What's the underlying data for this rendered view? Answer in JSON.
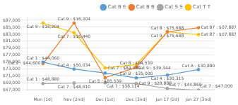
{
  "chart_data": {
    "type": "line",
    "categories": [
      "Mon [1d]",
      "Nov [2nd]",
      "Dec [1st]",
      "Dec [3nd]",
      "Jan 17 [2d]",
      "Jan 27 [3nd]"
    ],
    "series": [
      {
        "name": "Cat B E",
        "color": "#5B9BD5",
        "values": [
          75004,
          73034,
          71888,
          70500,
          71313,
          72880
        ],
        "annotations": [
          "Cat 1 : $44,060",
          "Cat 4 : $50,034",
          null,
          "Cat B : $35,000",
          "Cat 4 : $30,315",
          "Cat A : $30,880"
        ]
      },
      {
        "name": "Cat B B",
        "color": "#ED7D31",
        "values": [
          74600,
          86204,
          70539,
          73539,
          83688,
          84887
        ],
        "annotations": [
          "Cat 2 : $44,600",
          "Cat 9 : $16,204",
          "Cat 5 : $85,539",
          "Cat 8 : $84,539",
          "Cat 8 : $75,688",
          "Cat 87 : $07,887"
        ]
      },
      {
        "name": "Cat S S",
        "color": "#A5A5A5",
        "values": [
          68880,
          69010,
          69114,
          68888,
          67469,
          67000
        ],
        "annotations": [
          "Cat 1 : $48,880",
          "Cat 7 : $48,010",
          "Cat 7 : $38,114",
          "Cat 9 : $28,888",
          "Cat 7 : $44,869",
          "Cat 7 : $47,000"
        ]
      },
      {
        "name": "Cat T T",
        "color": "#FFC000",
        "values": [
          86204,
          83440,
          73339,
          74344,
          83688,
          82887
        ],
        "annotations": [
          "Cat 9 : $16,204",
          "Cat 7 : $16,440",
          "Cat 7 : $84,339",
          "Cat 9 : $39,344",
          "Cat 9 : $75,688",
          "Cat 87 : $07,887"
        ]
      }
    ],
    "ylim": [
      67000,
      88000
    ],
    "yticks": [
      {
        "value": 67000,
        "label": "$67,000"
      },
      {
        "value": 69000,
        "label": "$69,000"
      },
      {
        "value": 71000,
        "label": "$71,000"
      },
      {
        "value": 73000,
        "label": "$73,000"
      },
      {
        "value": 75000,
        "label": "$75,000"
      },
      {
        "value": 77000,
        "label": "$77,000"
      },
      {
        "value": 79000,
        "label": "$79,000"
      },
      {
        "value": 81000,
        "label": "$81,000"
      },
      {
        "value": 83000,
        "label": "$83,000"
      },
      {
        "value": 85000,
        "label": "$85,000"
      },
      {
        "value": 87000,
        "label": "$87,000"
      }
    ],
    "grid": "y",
    "legend": "upper right",
    "marker": "circle"
  }
}
